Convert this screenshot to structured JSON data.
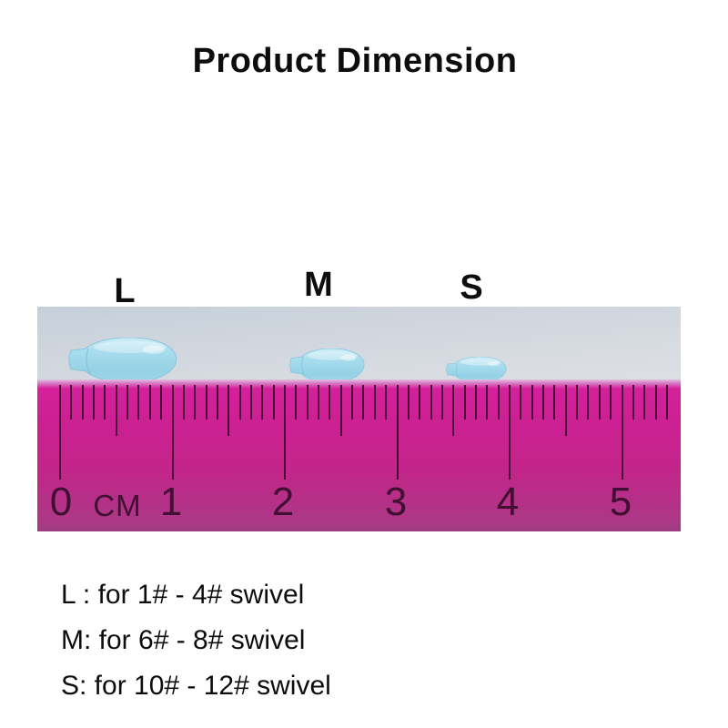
{
  "title": "Product Dimension",
  "photo": {
    "size_labels": {
      "large": "L",
      "medium": "M",
      "small": "S"
    },
    "ruler": {
      "unit_label": "CM",
      "numbers": [
        "0",
        "1",
        "2",
        "3",
        "4",
        "5"
      ]
    }
  },
  "size_notes": [
    "L : for 1# - 4# swivel",
    "M: for 6# - 8# swivel",
    "S: for 10# - 12# swivel"
  ],
  "colors": {
    "ruler_magenta": "#c92190",
    "stopper_blue": "#a4dbec",
    "text": "#0d0d0d",
    "photo_background": "#dcdfe4"
  }
}
